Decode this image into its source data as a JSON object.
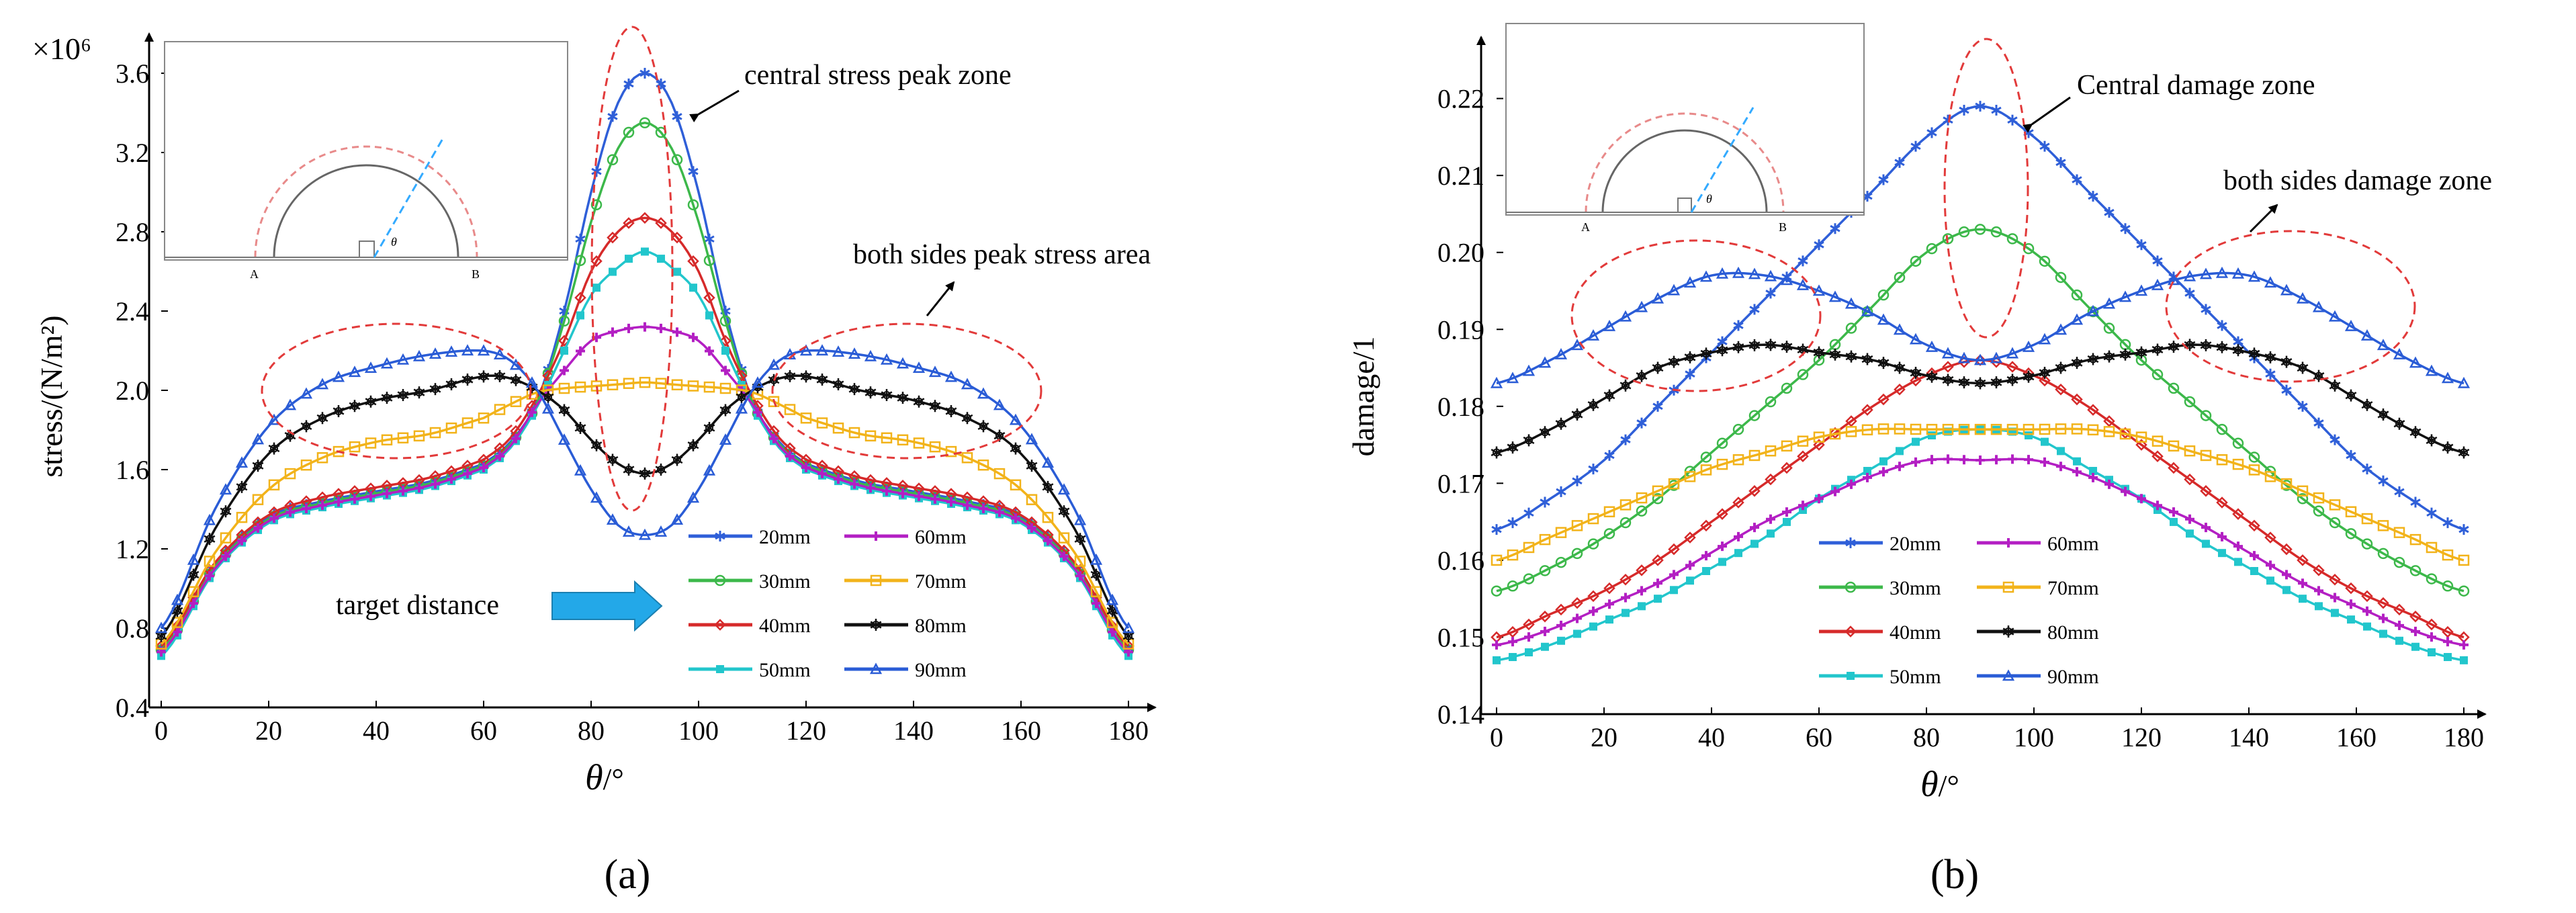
{
  "panel_labels": {
    "a": "(a)",
    "b": "(b)"
  },
  "annotations": {
    "a_central": "central stress peak zone",
    "a_sides": "both sides peak stress area",
    "a_target": "target distance",
    "b_central": "Central damage zone",
    "b_sides": "both sides damage zone"
  },
  "inset": {
    "label_a": "A",
    "label_b": "B",
    "label_theta": "θ"
  },
  "colors": {
    "20mm": "#2f5fd8",
    "30mm": "#3cb84a",
    "40mm": "#d62a2a",
    "50mm": "#22c6cc",
    "60mm": "#b31fc3",
    "70mm": "#f2b31a",
    "80mm": "#111111",
    "90mm": "#2a5cd6",
    "ellipse": "#e23a3a",
    "arrow_fill": "#23a8e8"
  },
  "chart_data": [
    {
      "type": "line",
      "title": "",
      "xlabel_symbol": "θ",
      "xlabel_unit": "/°",
      "ylabel": "stress/(N/m²)",
      "y_multiplier": "×10⁶",
      "xlim": [
        0,
        180
      ],
      "ylim": [
        0.4,
        3.8
      ],
      "x_ticks": [
        0,
        20,
        40,
        60,
        80,
        100,
        120,
        140,
        160,
        180
      ],
      "y_ticks": [
        0.4,
        0.8,
        1.2,
        1.6,
        2.0,
        2.4,
        2.8,
        3.2,
        3.6
      ],
      "y_tick_labels": [
        "0.4",
        "0.8",
        "1.2",
        "1.6",
        "2.0",
        "2.4",
        "2.8",
        "3.2",
        "3.6"
      ],
      "x": [
        0,
        10,
        20,
        30,
        40,
        50,
        60,
        65,
        70,
        75,
        80,
        85,
        90,
        95,
        100,
        105,
        110,
        115,
        120,
        130,
        140,
        150,
        160,
        170,
        180
      ],
      "series": [
        {
          "name": "20mm",
          "marker": "star",
          "values": [
            0.7,
            1.12,
            1.36,
            1.44,
            1.49,
            1.54,
            1.63,
            1.74,
            1.95,
            2.4,
            3.0,
            3.45,
            3.6,
            3.45,
            3.0,
            2.4,
            1.95,
            1.74,
            1.63,
            1.54,
            1.49,
            1.44,
            1.36,
            1.12,
            0.7
          ]
        },
        {
          "name": "30mm",
          "marker": "circle",
          "values": [
            0.69,
            1.11,
            1.35,
            1.43,
            1.48,
            1.53,
            1.62,
            1.73,
            1.94,
            2.35,
            2.85,
            3.22,
            3.35,
            3.22,
            2.85,
            2.35,
            1.94,
            1.73,
            1.62,
            1.53,
            1.48,
            1.43,
            1.35,
            1.11,
            0.69
          ]
        },
        {
          "name": "40mm",
          "marker": "diamond",
          "values": [
            0.71,
            1.13,
            1.37,
            1.46,
            1.51,
            1.56,
            1.65,
            1.76,
            1.97,
            2.25,
            2.6,
            2.8,
            2.87,
            2.8,
            2.6,
            2.25,
            1.97,
            1.76,
            1.65,
            1.56,
            1.51,
            1.46,
            1.37,
            1.13,
            0.71
          ]
        },
        {
          "name": "50mm",
          "marker": "square",
          "values": [
            0.66,
            1.09,
            1.33,
            1.41,
            1.46,
            1.51,
            1.6,
            1.71,
            1.92,
            2.2,
            2.48,
            2.62,
            2.7,
            2.62,
            2.48,
            2.2,
            1.92,
            1.71,
            1.6,
            1.51,
            1.46,
            1.41,
            1.33,
            1.09,
            0.66
          ]
        },
        {
          "name": "60mm",
          "marker": "plus",
          "values": [
            0.68,
            1.1,
            1.34,
            1.42,
            1.47,
            1.52,
            1.61,
            1.72,
            1.93,
            2.1,
            2.25,
            2.3,
            2.32,
            2.3,
            2.25,
            2.1,
            1.93,
            1.72,
            1.61,
            1.52,
            1.47,
            1.42,
            1.34,
            1.1,
            0.68
          ]
        },
        {
          "name": "70mm",
          "marker": "open-square",
          "values": [
            0.72,
            1.18,
            1.5,
            1.66,
            1.74,
            1.78,
            1.86,
            1.93,
            1.99,
            2.01,
            2.02,
            2.03,
            2.04,
            2.03,
            2.02,
            2.01,
            1.99,
            1.93,
            1.86,
            1.78,
            1.74,
            1.66,
            1.5,
            1.18,
            0.72
          ]
        },
        {
          "name": "80mm",
          "marker": "open-star",
          "values": [
            0.76,
            1.3,
            1.68,
            1.86,
            1.95,
            2.0,
            2.07,
            2.06,
            2.0,
            1.9,
            1.75,
            1.63,
            1.58,
            1.63,
            1.75,
            1.9,
            2.0,
            2.06,
            2.07,
            2.0,
            1.95,
            1.86,
            1.68,
            1.3,
            0.76
          ]
        },
        {
          "name": "90mm",
          "marker": "triangle",
          "values": [
            0.8,
            1.4,
            1.82,
            2.03,
            2.12,
            2.18,
            2.2,
            2.15,
            2.0,
            1.75,
            1.5,
            1.32,
            1.27,
            1.32,
            1.5,
            1.75,
            2.0,
            2.15,
            2.2,
            2.18,
            2.12,
            2.03,
            1.82,
            1.4,
            0.8
          ]
        }
      ]
    },
    {
      "type": "line",
      "title": "",
      "xlabel_symbol": "θ",
      "xlabel_unit": "/°",
      "ylabel": "damage/1",
      "xlim": [
        0,
        180
      ],
      "ylim": [
        0.14,
        0.228
      ],
      "x_ticks": [
        0,
        20,
        40,
        60,
        80,
        100,
        120,
        140,
        160,
        180
      ],
      "y_ticks": [
        0.14,
        0.15,
        0.16,
        0.17,
        0.18,
        0.19,
        0.2,
        0.21,
        0.22
      ],
      "y_tick_labels": [
        "0.14",
        "0.15",
        "0.16",
        "0.17",
        "0.18",
        "0.19",
        "0.20",
        "0.21",
        "0.22"
      ],
      "x": [
        0,
        10,
        20,
        30,
        40,
        50,
        60,
        70,
        80,
        90,
        100,
        110,
        120,
        130,
        140,
        150,
        160,
        170,
        180
      ],
      "series": [
        {
          "name": "20mm",
          "marker": "star",
          "values": [
            0.164,
            0.168,
            0.173,
            0.18,
            0.187,
            0.194,
            0.201,
            0.208,
            0.215,
            0.219,
            0.215,
            0.208,
            0.201,
            0.194,
            0.187,
            0.18,
            0.173,
            0.168,
            0.164
          ]
        },
        {
          "name": "30mm",
          "marker": "circle",
          "values": [
            0.156,
            0.159,
            0.163,
            0.168,
            0.174,
            0.18,
            0.186,
            0.193,
            0.2,
            0.203,
            0.2,
            0.193,
            0.186,
            0.18,
            0.174,
            0.168,
            0.163,
            0.159,
            0.156
          ]
        },
        {
          "name": "40mm",
          "marker": "diamond",
          "values": [
            0.15,
            0.153,
            0.156,
            0.16,
            0.165,
            0.17,
            0.175,
            0.18,
            0.184,
            0.186,
            0.184,
            0.18,
            0.175,
            0.17,
            0.165,
            0.16,
            0.156,
            0.153,
            0.15
          ]
        },
        {
          "name": "50mm",
          "marker": "square",
          "values": [
            0.147,
            0.149,
            0.152,
            0.155,
            0.159,
            0.163,
            0.168,
            0.172,
            0.176,
            0.177,
            0.176,
            0.172,
            0.168,
            0.163,
            0.159,
            0.155,
            0.152,
            0.149,
            0.147
          ]
        },
        {
          "name": "60mm",
          "marker": "plus",
          "values": [
            0.149,
            0.151,
            0.154,
            0.157,
            0.161,
            0.165,
            0.168,
            0.171,
            0.173,
            0.173,
            0.173,
            0.171,
            0.168,
            0.165,
            0.161,
            0.157,
            0.154,
            0.151,
            0.149
          ]
        },
        {
          "name": "70mm",
          "marker": "open-square",
          "values": [
            0.16,
            0.163,
            0.166,
            0.169,
            0.172,
            0.174,
            0.176,
            0.177,
            0.177,
            0.177,
            0.177,
            0.177,
            0.176,
            0.174,
            0.172,
            0.169,
            0.166,
            0.163,
            0.16
          ]
        },
        {
          "name": "80mm",
          "marker": "open-star",
          "values": [
            0.174,
            0.177,
            0.181,
            0.185,
            0.187,
            0.188,
            0.187,
            0.186,
            0.184,
            0.183,
            0.184,
            0.186,
            0.187,
            0.188,
            0.187,
            0.185,
            0.181,
            0.177,
            0.174
          ]
        },
        {
          "name": "90mm",
          "marker": "triangle",
          "values": [
            0.183,
            0.186,
            0.19,
            0.194,
            0.197,
            0.197,
            0.195,
            0.192,
            0.188,
            0.186,
            0.188,
            0.192,
            0.195,
            0.197,
            0.197,
            0.194,
            0.19,
            0.186,
            0.183
          ]
        }
      ]
    }
  ]
}
